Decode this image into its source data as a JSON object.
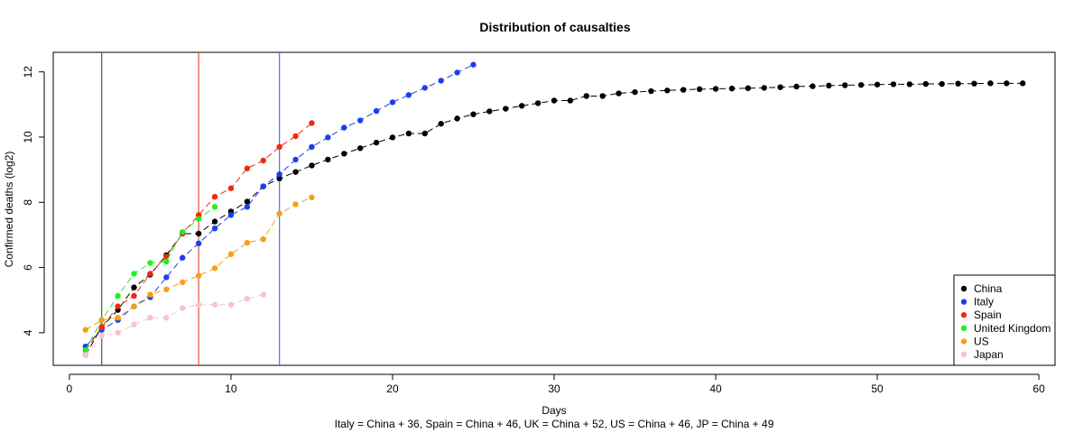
{
  "chart_data": {
    "type": "line",
    "title": "Distribution of causalties",
    "xlabel": "Days",
    "ylabel": "Confirmed deaths (log2)",
    "subtitle": "Italy =  China + 36, Spain =  China + 46, UK = China + 52, US = China + 46, JP = China + 49",
    "xlim": [
      -1,
      61
    ],
    "ylim": [
      3,
      12.6
    ],
    "xticks": [
      0,
      10,
      20,
      30,
      40,
      50,
      60
    ],
    "yticks": [
      4,
      6,
      8,
      10,
      12
    ],
    "vlines": [
      {
        "x": 2,
        "color": "#555555"
      },
      {
        "x": 8,
        "color": "#e8504a"
      },
      {
        "x": 13,
        "color": "#5a6cf5"
      }
    ],
    "legend_position": "bottom-right",
    "series": [
      {
        "name": "China",
        "color": "#000000",
        "values": [
          3.32,
          4.17,
          4.7,
          5.39,
          5.78,
          6.38,
          7.04,
          7.04,
          7.41,
          7.72,
          8.02,
          8.49,
          8.73,
          8.93,
          9.13,
          9.31,
          9.49,
          9.66,
          9.83,
          9.99,
          10.11,
          10.11,
          10.41,
          10.57,
          10.7,
          10.79,
          10.87,
          10.96,
          11.04,
          11.12,
          11.12,
          11.26,
          11.26,
          11.34,
          11.38,
          11.41,
          11.43,
          11.45,
          11.47,
          11.48,
          11.49,
          11.5,
          11.51,
          11.53,
          11.55,
          11.56,
          11.58,
          11.59,
          11.6,
          11.61,
          11.62,
          11.62,
          11.63,
          11.63,
          11.64,
          11.64,
          11.65,
          11.65,
          11.65
        ]
      },
      {
        "name": "Italy",
        "color": "#1a3ff0",
        "values": [
          3.58,
          4.09,
          4.39,
          4.81,
          5.09,
          5.7,
          6.3,
          6.74,
          7.2,
          7.61,
          7.86,
          8.49,
          8.86,
          9.31,
          9.7,
          9.99,
          10.29,
          10.51,
          10.8,
          11.07,
          11.29,
          11.51,
          11.73,
          11.98,
          12.22
        ]
      },
      {
        "name": "Spain",
        "color": "#ee2a10",
        "values": [
          3.46,
          4.17,
          4.81,
          5.13,
          5.81,
          6.34,
          7.04,
          7.61,
          8.17,
          8.43,
          9.04,
          9.28,
          9.7,
          10.03,
          10.43
        ]
      },
      {
        "name": "United Kingdom",
        "color": "#22ee22",
        "values": [
          3.46,
          4.39,
          5.13,
          5.81,
          6.14,
          6.18,
          7.09,
          7.49,
          7.86
        ]
      },
      {
        "name": "US",
        "color": "#f5a015",
        "values": [
          4.09,
          4.39,
          4.46,
          4.81,
          5.17,
          5.33,
          5.55,
          5.75,
          5.98,
          6.41,
          6.76,
          6.87,
          7.65,
          7.94,
          8.15
        ]
      },
      {
        "name": "Japan",
        "color": "#f9c3cd",
        "values": [
          3.32,
          3.91,
          4.0,
          4.25,
          4.46,
          4.46,
          4.75,
          4.86,
          4.86,
          4.86,
          5.04,
          5.17
        ]
      }
    ]
  }
}
